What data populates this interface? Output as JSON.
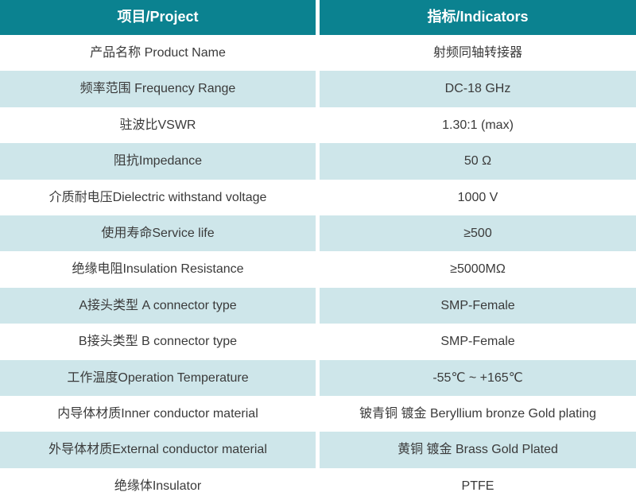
{
  "table": {
    "header": {
      "project": "项目/Project",
      "indicators": "指标/Indicators"
    },
    "rows": [
      {
        "project": "产品名称 Product Name",
        "indicator": "射频同轴转接器"
      },
      {
        "project": "频率范围 Frequency Range",
        "indicator": "DC-18 GHz"
      },
      {
        "project": "驻波比VSWR",
        "indicator": "1.30:1 (max)"
      },
      {
        "project": "阻抗Impedance",
        "indicator": "50 Ω"
      },
      {
        "project": "介质耐电压Dielectric withstand voltage",
        "indicator": "1000 V"
      },
      {
        "project": "使用寿命Service life",
        "indicator": "≥500"
      },
      {
        "project": "绝缘电阻Insulation Resistance",
        "indicator": "≥5000MΩ"
      },
      {
        "project": "A接头类型 A connector type",
        "indicator": "SMP-Female"
      },
      {
        "project": "B接头类型 B connector type",
        "indicator": "SMP-Female"
      },
      {
        "project": "工作温度Operation Temperature",
        "indicator": "-55℃ ~ +165℃"
      },
      {
        "project": "内导体材质Inner conductor material",
        "indicator": "铍青铜 镀金 Beryllium bronze Gold plating"
      },
      {
        "project": "外导体材质External conductor material",
        "indicator": "黄铜 镀金 Brass Gold Plated"
      },
      {
        "project": "绝缘体Insulator",
        "indicator": "PTFE"
      }
    ],
    "colors": {
      "header_bg": "#0b8290",
      "header_text": "#ffffff",
      "row_tint_bg": "#cee6ea",
      "row_white_bg": "#ffffff",
      "body_text": "#3a3a3a"
    }
  }
}
